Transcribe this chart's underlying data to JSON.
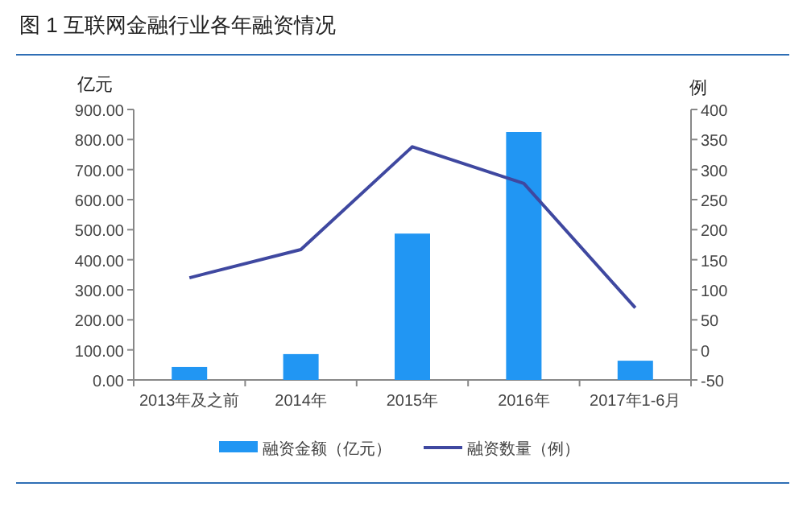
{
  "chart_data": {
    "type": "bar",
    "title": "图 1 互联网金融行业各年融资情况",
    "ylabel": "亿元",
    "y2label": "例",
    "categories": [
      "2013年及之前",
      "2014年",
      "2015年",
      "2016年",
      "2017年1-6月"
    ],
    "series": [
      {
        "name": "融资金额（亿元）",
        "color": "#2196f3",
        "values": [
          43,
          86,
          487,
          825,
          64
        ]
      },
      {
        "name": "融资数量（例）",
        "type": "line",
        "axis": "y2",
        "color": "#3f48a0",
        "values": [
          120,
          167,
          338,
          277,
          70
        ]
      }
    ],
    "ylim": [
      0,
      900
    ],
    "yticks": [
      {
        "value": 0,
        "label": "0.00"
      },
      {
        "value": 100,
        "label": "100.00"
      },
      {
        "value": 200,
        "label": "200.00"
      },
      {
        "value": 300,
        "label": "300.00"
      },
      {
        "value": 400,
        "label": "400.00"
      },
      {
        "value": 500,
        "label": "500.00"
      },
      {
        "value": 600,
        "label": "600.00"
      },
      {
        "value": 700,
        "label": "700.00"
      },
      {
        "value": 800,
        "label": "800.00"
      },
      {
        "value": 900,
        "label": "900.00"
      }
    ],
    "y2lim": [
      -50,
      400
    ],
    "y2ticks": [
      -50,
      0,
      50,
      100,
      150,
      200,
      250,
      300,
      350,
      400
    ],
    "grid": false,
    "legend": "bottom"
  }
}
